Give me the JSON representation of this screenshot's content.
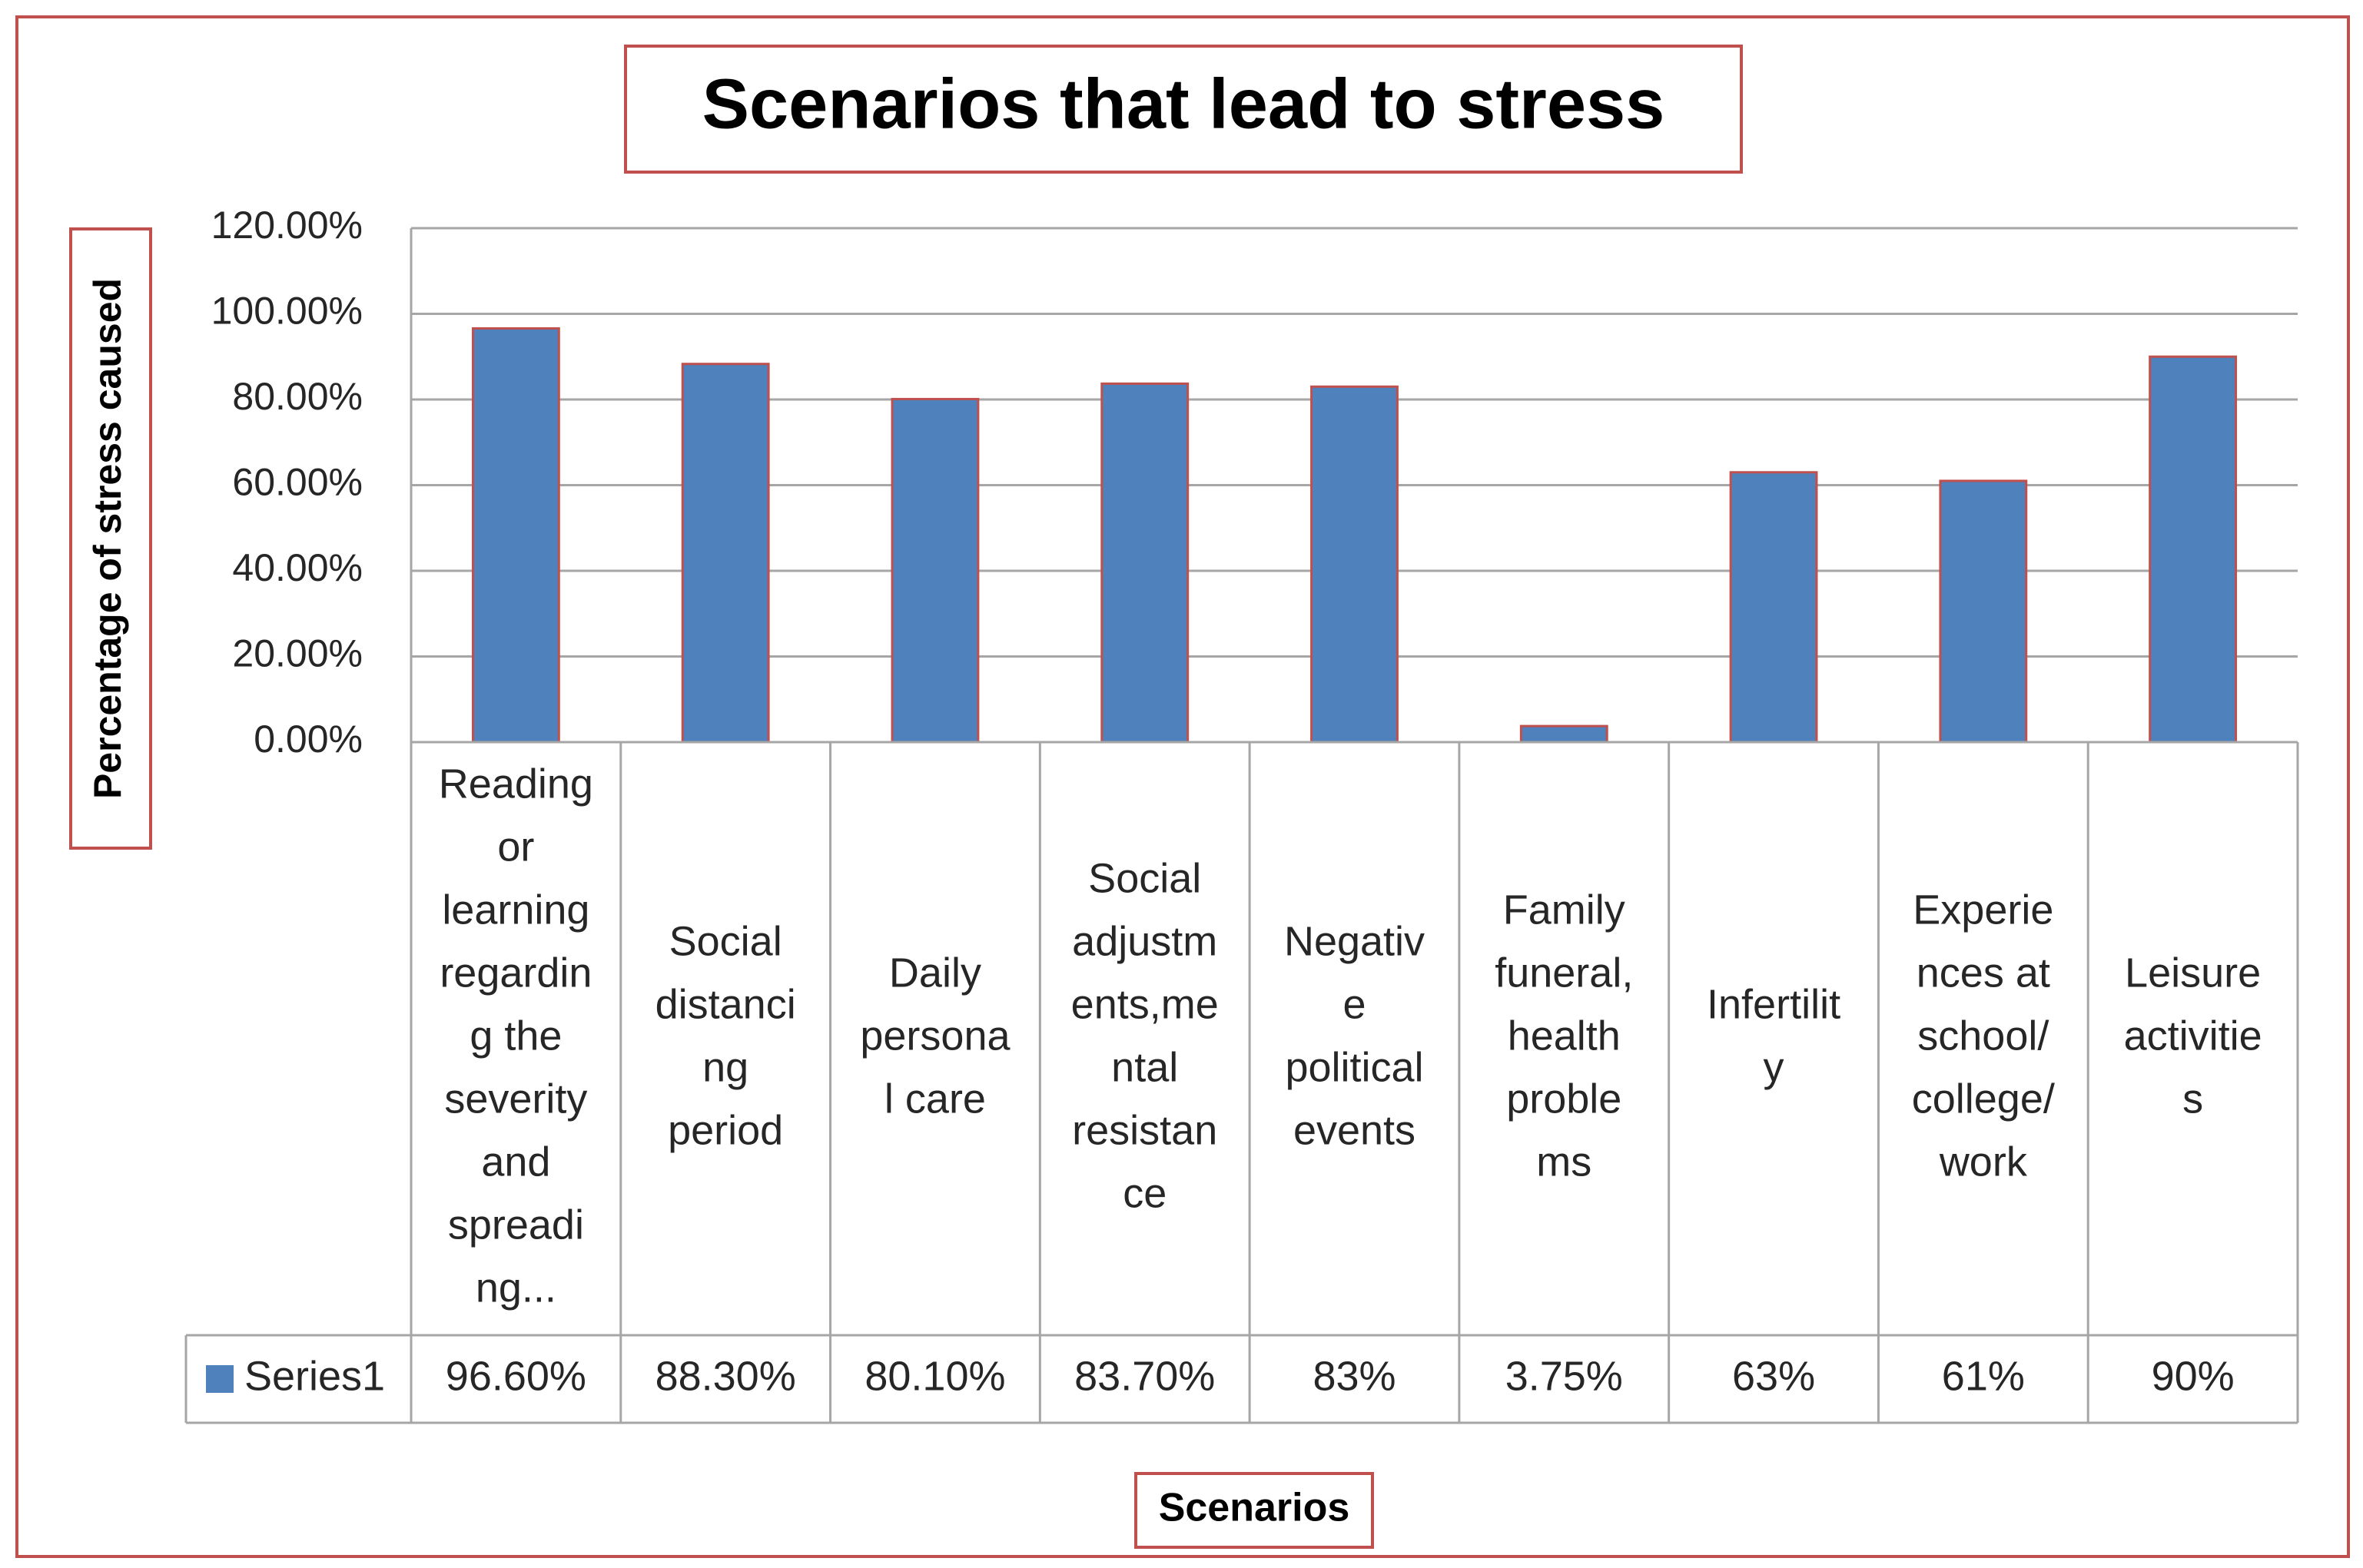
{
  "chart_data": {
    "type": "bar",
    "title": "Scenarios that lead to stress",
    "xlabel": "Scenarios",
    "ylabel": "Percentage of stress caused",
    "ylim": [
      0,
      1.2
    ],
    "yticks": [
      "0.00%",
      "20.00%",
      "40.00%",
      "60.00%",
      "80.00%",
      "100.00%",
      "120.00%"
    ],
    "ytick_values": [
      0,
      0.2,
      0.4,
      0.6,
      0.8,
      1.0,
      1.2
    ],
    "categories": [
      "Reading or learning regarding the severity and spreading...",
      "Social distancing period",
      "Daily personal care",
      "Social adjustments,mental resistance",
      "Negative political events",
      "Family funeral, health problems",
      "Infertility",
      "Experiences at school/ college/ work",
      "Leisure activities"
    ],
    "category_lines": [
      [
        "Reading",
        "or",
        "learning",
        "regardin",
        "g the",
        "severity",
        "and",
        "spreadi",
        "ng..."
      ],
      [
        "Social",
        "distanci",
        "ng",
        "period"
      ],
      [
        "Daily",
        "persona",
        "l care"
      ],
      [
        "Social",
        "adjustm",
        "ents,me",
        "ntal",
        "resistan",
        "ce"
      ],
      [
        "Negativ",
        "e",
        "political",
        "events"
      ],
      [
        "Family",
        "funeral,",
        "health",
        "proble",
        "ms"
      ],
      [
        "Infertilit",
        "y"
      ],
      [
        "Experie",
        "nces at",
        "school/",
        "college/",
        "work"
      ],
      [
        "Leisure",
        "activitie",
        "s"
      ]
    ],
    "series": [
      {
        "name": "Series1",
        "color": "#4f81bd",
        "values": [
          0.966,
          0.883,
          0.801,
          0.837,
          0.83,
          0.0375,
          0.63,
          0.61,
          0.9
        ],
        "labels": [
          "96.60%",
          "88.30%",
          "80.10%",
          "83.70%",
          "83%",
          "3.75%",
          "63%",
          "61%",
          "90%"
        ]
      }
    ],
    "grid": true,
    "legend": "data-table",
    "colors": {
      "frame": "#c0504d",
      "gridline": "#a6a6a6",
      "table_border": "#a6a6a6",
      "text": "#262626"
    }
  }
}
